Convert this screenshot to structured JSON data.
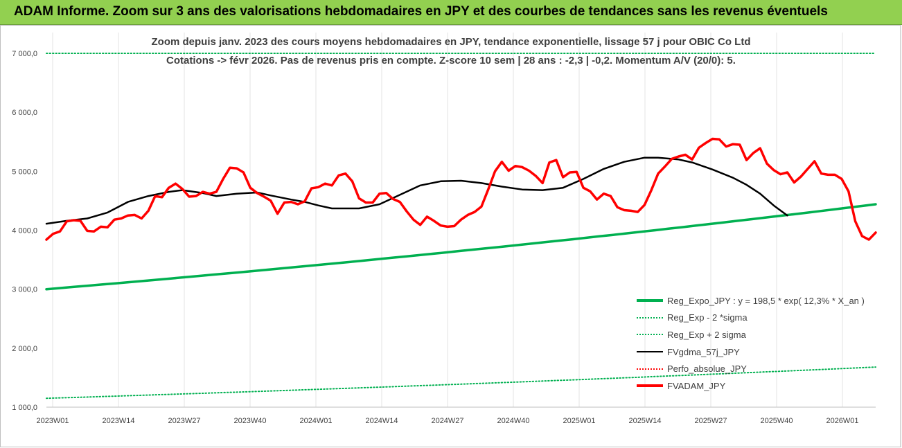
{
  "banner": {
    "title": "ADAM Informe. Zoom sur 3 ans des valorisations hebdomadaires en JPY et des courbes de tendances sans les revenus éventuels"
  },
  "chart_data": {
    "type": "line",
    "title": "Zoom depuis janv. 2023 des cours moyens hebdomadaires en JPY, tendance exponentielle, lissage 57 j pour OBIC Co Ltd",
    "subtitle": "Cotations -> févr 2026.  Pas de revenus pris en compte. Z-score 10 sem | 28 ans : -2,3 | -0,2. Momentum A/V (20/0): 5.",
    "xlabel": "",
    "ylabel": "",
    "ylim": [
      1000,
      7000
    ],
    "y_ticks": [
      "1 000,0",
      "2 000,0",
      "3 000,0",
      "4 000,0",
      "5 000,0",
      "6 000,0",
      "7 000,0"
    ],
    "x_ticks": [
      "2023W01",
      "2023W14",
      "2023W27",
      "2023W40",
      "2024W01",
      "2024W14",
      "2024W27",
      "2024W40",
      "2025W01",
      "2025W14",
      "2025W27",
      "2025W40",
      "2026W01"
    ],
    "n_weeks": 162,
    "grid": "vertical",
    "legend_position": "bottom-right",
    "series": [
      {
        "name": "Reg_Expo_JPY : y = 198,5 * exp( 12,3% *  X_an )",
        "color": "#00b050",
        "style": "solid-thick",
        "start": 3000,
        "end": 4440
      },
      {
        "name": "Reg_Exp - 2 *sigma",
        "color": "#00b050",
        "style": "dotted",
        "start": 1150,
        "end": 1680
      },
      {
        "name": "Reg_Exp + 2 sigma",
        "color": "#00b050",
        "style": "dotted",
        "start": 7000,
        "end": 7000
      },
      {
        "name": "FVgdma_57j_JPY",
        "color": "#000000",
        "style": "solid",
        "points": [
          [
            0,
            4110
          ],
          [
            6,
            4160
          ],
          [
            12,
            4200
          ],
          [
            18,
            4300
          ],
          [
            24,
            4480
          ],
          [
            30,
            4580
          ],
          [
            36,
            4650
          ],
          [
            40,
            4680
          ],
          [
            46,
            4630
          ],
          [
            50,
            4580
          ],
          [
            56,
            4620
          ],
          [
            62,
            4640
          ],
          [
            66,
            4590
          ],
          [
            72,
            4520
          ],
          [
            76,
            4480
          ],
          [
            80,
            4420
          ],
          [
            84,
            4370
          ],
          [
            92,
            4370
          ],
          [
            98,
            4440
          ],
          [
            104,
            4600
          ],
          [
            110,
            4760
          ],
          [
            116,
            4830
          ],
          [
            122,
            4840
          ],
          [
            128,
            4800
          ],
          [
            134,
            4740
          ],
          [
            140,
            4690
          ],
          [
            146,
            4680
          ],
          [
            152,
            4720
          ],
          [
            158,
            4870
          ],
          [
            164,
            5040
          ],
          [
            170,
            5160
          ],
          [
            176,
            5230
          ],
          [
            180,
            5230
          ],
          [
            186,
            5200
          ],
          [
            190,
            5150
          ],
          [
            196,
            5030
          ],
          [
            202,
            4890
          ],
          [
            206,
            4770
          ],
          [
            210,
            4620
          ],
          [
            214,
            4420
          ],
          [
            218,
            4250
          ]
        ]
      },
      {
        "name": "Perfo_absolue_JPY",
        "color": "#ff0000",
        "style": "dotted",
        "start": null,
        "end": null
      },
      {
        "name": "FVADAM_JPY",
        "color": "#ff0000",
        "style": "solid-thick",
        "points": [
          [
            0,
            3840
          ],
          [
            2,
            3940
          ],
          [
            4,
            3980
          ],
          [
            6,
            4150
          ],
          [
            8,
            4170
          ],
          [
            10,
            4160
          ],
          [
            12,
            3990
          ],
          [
            14,
            3980
          ],
          [
            16,
            4060
          ],
          [
            18,
            4050
          ],
          [
            20,
            4180
          ],
          [
            22,
            4200
          ],
          [
            24,
            4250
          ],
          [
            26,
            4260
          ],
          [
            28,
            4200
          ],
          [
            30,
            4330
          ],
          [
            32,
            4580
          ],
          [
            34,
            4560
          ],
          [
            36,
            4720
          ],
          [
            38,
            4790
          ],
          [
            40,
            4700
          ],
          [
            42,
            4570
          ],
          [
            44,
            4580
          ],
          [
            46,
            4650
          ],
          [
            48,
            4620
          ],
          [
            50,
            4650
          ],
          [
            52,
            4870
          ],
          [
            54,
            5060
          ],
          [
            56,
            5050
          ],
          [
            58,
            4980
          ],
          [
            60,
            4720
          ],
          [
            62,
            4630
          ],
          [
            64,
            4570
          ],
          [
            66,
            4500
          ],
          [
            68,
            4280
          ],
          [
            70,
            4470
          ],
          [
            72,
            4480
          ],
          [
            74,
            4440
          ],
          [
            76,
            4490
          ],
          [
            78,
            4710
          ],
          [
            80,
            4730
          ],
          [
            82,
            4790
          ],
          [
            84,
            4760
          ],
          [
            86,
            4930
          ],
          [
            88,
            4960
          ],
          [
            90,
            4830
          ],
          [
            92,
            4540
          ],
          [
            94,
            4470
          ],
          [
            96,
            4470
          ],
          [
            98,
            4620
          ],
          [
            100,
            4630
          ],
          [
            102,
            4530
          ],
          [
            104,
            4480
          ],
          [
            106,
            4320
          ],
          [
            108,
            4180
          ],
          [
            110,
            4090
          ],
          [
            112,
            4230
          ],
          [
            114,
            4160
          ],
          [
            116,
            4080
          ],
          [
            118,
            4060
          ],
          [
            120,
            4070
          ],
          [
            122,
            4180
          ],
          [
            124,
            4260
          ],
          [
            126,
            4310
          ],
          [
            128,
            4400
          ],
          [
            130,
            4690
          ],
          [
            132,
            5000
          ],
          [
            134,
            5160
          ],
          [
            136,
            5010
          ],
          [
            138,
            5090
          ],
          [
            140,
            5070
          ],
          [
            142,
            5010
          ],
          [
            144,
            4920
          ],
          [
            146,
            4800
          ],
          [
            148,
            5150
          ],
          [
            150,
            5190
          ],
          [
            152,
            4900
          ],
          [
            154,
            4980
          ],
          [
            156,
            4990
          ],
          [
            158,
            4720
          ],
          [
            160,
            4660
          ],
          [
            162,
            4520
          ],
          [
            164,
            4620
          ],
          [
            166,
            4580
          ],
          [
            168,
            4390
          ],
          [
            170,
            4340
          ],
          [
            172,
            4330
          ],
          [
            174,
            4310
          ],
          [
            176,
            4430
          ],
          [
            178,
            4680
          ],
          [
            180,
            4960
          ],
          [
            182,
            5080
          ],
          [
            184,
            5210
          ],
          [
            186,
            5250
          ],
          [
            188,
            5280
          ],
          [
            190,
            5200
          ],
          [
            192,
            5400
          ],
          [
            194,
            5480
          ],
          [
            196,
            5550
          ],
          [
            198,
            5540
          ],
          [
            200,
            5420
          ],
          [
            202,
            5460
          ],
          [
            204,
            5450
          ],
          [
            206,
            5190
          ],
          [
            208,
            5310
          ],
          [
            210,
            5390
          ],
          [
            212,
            5130
          ],
          [
            214,
            5020
          ],
          [
            216,
            4950
          ],
          [
            218,
            4980
          ],
          [
            220,
            4810
          ],
          [
            222,
            4910
          ],
          [
            224,
            5040
          ],
          [
            226,
            5170
          ],
          [
            228,
            4960
          ],
          [
            230,
            4940
          ],
          [
            232,
            4940
          ],
          [
            234,
            4870
          ],
          [
            236,
            4660
          ],
          [
            238,
            4150
          ],
          [
            240,
            3900
          ],
          [
            242,
            3840
          ],
          [
            244,
            3960
          ]
        ]
      }
    ]
  },
  "legend": {
    "items": [
      "Reg_Expo_JPY : y = 198,5 * exp( 12,3% *  X_an )",
      "Reg_Exp - 2 *sigma",
      "Reg_Exp + 2 sigma",
      "FVgdma_57j_JPY",
      "Perfo_absolue_JPY",
      "FVADAM_JPY"
    ]
  }
}
